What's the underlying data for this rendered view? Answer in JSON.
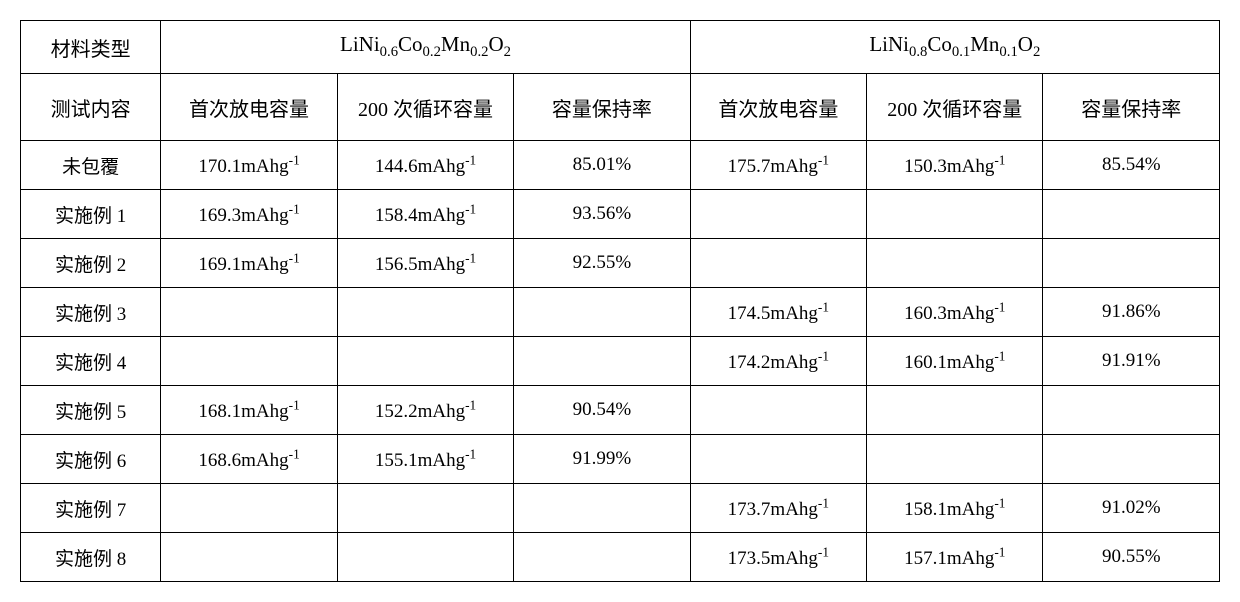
{
  "table": {
    "border_color": "#000000",
    "background_color": "#ffffff",
    "text_color": "#000000",
    "font_family_cjk": "SimSun",
    "font_family_latin": "Times New Roman",
    "header": {
      "material_type_label": "材料类型",
      "material_a": {
        "base": "LiNi",
        "s1": "0.6",
        "mid1": "Co",
        "s2": "0.2",
        "mid2": "Mn",
        "s3": "0.2",
        "tail": "O",
        "s4": "2"
      },
      "material_b": {
        "base": "LiNi",
        "s1": "0.8",
        "mid1": "Co",
        "s2": "0.1",
        "mid2": "Mn",
        "s3": "0.1",
        "tail": "O",
        "s4": "2"
      }
    },
    "subheader": {
      "test_content_label": "测试内容",
      "col_first_discharge": "首次放电容量",
      "col_200_cycle": "200 次循环容量",
      "col_retention": "容量保持率"
    },
    "unit_mAhg": "mAhg",
    "unit_exp": "-1",
    "rows": [
      {
        "label": "未包覆",
        "a1": "170.1",
        "a2": "144.6",
        "a3": "85.01%",
        "b1": "175.7",
        "b2": "150.3",
        "b3": "85.54%"
      },
      {
        "label": "实施例 1",
        "a1": "169.3",
        "a2": "158.4",
        "a3": "93.56%",
        "b1": "",
        "b2": "",
        "b3": ""
      },
      {
        "label": "实施例 2",
        "a1": "169.1",
        "a2": "156.5",
        "a3": "92.55%",
        "b1": "",
        "b2": "",
        "b3": ""
      },
      {
        "label": "实施例 3",
        "a1": "",
        "a2": "",
        "a3": "",
        "b1": "174.5",
        "b2": "160.3",
        "b3": "91.86%"
      },
      {
        "label": "实施例 4",
        "a1": "",
        "a2": "",
        "a3": "",
        "b1": "174.2",
        "b2": "160.1",
        "b3": "91.91%"
      },
      {
        "label": "实施例 5",
        "a1": "168.1",
        "a2": "152.2",
        "a3": "90.54%",
        "b1": "",
        "b2": "",
        "b3": ""
      },
      {
        "label": "实施例 6",
        "a1": "168.6",
        "a2": "155.1",
        "a3": "91.99%",
        "b1": "",
        "b2": "",
        "b3": ""
      },
      {
        "label": "实施例 7",
        "a1": "",
        "a2": "",
        "a3": "",
        "b1": "173.7",
        "b2": "158.1",
        "b3": "91.02%"
      },
      {
        "label": "实施例 8",
        "a1": "",
        "a2": "",
        "a3": "",
        "b1": "173.5",
        "b2": "157.1",
        "b3": "90.55%"
      }
    ]
  }
}
